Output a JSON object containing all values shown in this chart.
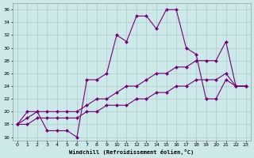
{
  "xlabel": "Windchill (Refroidissement éolien,°C)",
  "bg_color": "#cce8e8",
  "line_color": "#770077",
  "grid_color": "#aacccc",
  "xlim": [
    -0.5,
    23.5
  ],
  "ylim": [
    15.5,
    37.0
  ],
  "yticks": [
    16,
    18,
    20,
    22,
    24,
    26,
    28,
    30,
    32,
    34,
    36
  ],
  "xticks": [
    0,
    1,
    2,
    3,
    4,
    5,
    6,
    7,
    8,
    9,
    10,
    11,
    12,
    13,
    14,
    15,
    16,
    17,
    18,
    19,
    20,
    21,
    22,
    23
  ],
  "line1_x": [
    0,
    1,
    2,
    3,
    4,
    5,
    6,
    7,
    8,
    9,
    10,
    11,
    12,
    13,
    14,
    15,
    16,
    17,
    18,
    19,
    20,
    21,
    22,
    23
  ],
  "line1_y": [
    18,
    20,
    20,
    17,
    17,
    17,
    16,
    25,
    25,
    26,
    32,
    31,
    35,
    35,
    33,
    36,
    36,
    30,
    29,
    22,
    22,
    25,
    24,
    24
  ],
  "line2_x": [
    0,
    1,
    2,
    3,
    4,
    5,
    6,
    7,
    8,
    9,
    10,
    11,
    12,
    13,
    14,
    15,
    16,
    17,
    18,
    19,
    20,
    21,
    22,
    23
  ],
  "line2_y": [
    18,
    19,
    20,
    20,
    20,
    20,
    20,
    21,
    22,
    22,
    23,
    24,
    24,
    25,
    26,
    26,
    27,
    27,
    28,
    28,
    28,
    31,
    24,
    24
  ],
  "line3_x": [
    0,
    1,
    2,
    3,
    4,
    5,
    6,
    7,
    8,
    9,
    10,
    11,
    12,
    13,
    14,
    15,
    16,
    17,
    18,
    19,
    20,
    21,
    22,
    23
  ],
  "line3_y": [
    18,
    18,
    19,
    19,
    19,
    19,
    19,
    20,
    20,
    21,
    21,
    21,
    22,
    22,
    23,
    23,
    24,
    24,
    25,
    25,
    25,
    26,
    24,
    24
  ]
}
